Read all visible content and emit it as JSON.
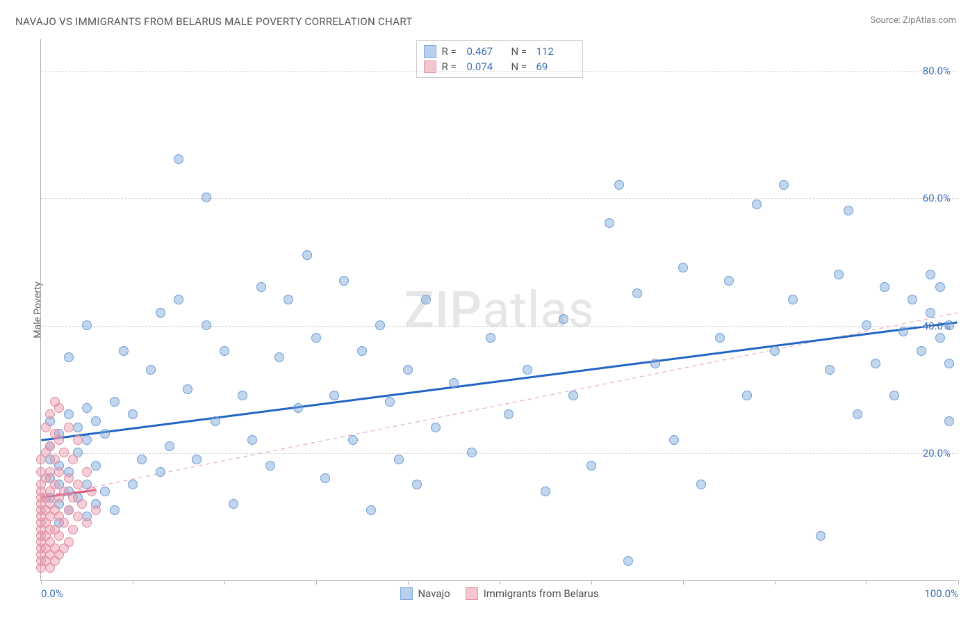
{
  "title": "NAVAJO VS IMMIGRANTS FROM BELARUS MALE POVERTY CORRELATION CHART",
  "source_prefix": "Source: ",
  "source_name": "ZipAtlas.com",
  "y_axis_label": "Male Poverty",
  "watermark_bold": "ZIP",
  "watermark_light": "atlas",
  "chart": {
    "type": "scatter",
    "background_color": "#ffffff",
    "grid_color": "#d8d8d8",
    "axis_color": "#b0b0b0",
    "tick_label_color": "#3b6fb6",
    "label_color": "#606060",
    "x_min": 0,
    "x_max": 100,
    "y_min": 0,
    "y_max": 85,
    "y_ticks": [
      20,
      40,
      60,
      80
    ],
    "y_tick_labels": [
      "20.0%",
      "40.0%",
      "60.0%",
      "80.0%"
    ],
    "x_ticks": [
      0,
      10,
      20,
      30,
      40,
      50,
      60,
      70,
      80,
      90,
      100
    ],
    "x_tick_labels": {
      "0": "0.0%",
      "100": "100.0%"
    },
    "point_radius": 7,
    "series": [
      {
        "name": "Navajo",
        "fill": "rgba(120,165,218,0.45)",
        "stroke": "#6d9cd4",
        "swatch_fill": "#b9d0ec",
        "swatch_border": "#7fa8d8",
        "trend": {
          "x1": 0,
          "y1": 22,
          "x2": 100,
          "y2": 40.5,
          "color": "#1f63c4",
          "width": 3,
          "dash": "none"
        },
        "trend_dashed": {
          "x1": 0,
          "y1": 13,
          "x2": 100,
          "y2": 42,
          "color": "#e9b4bd",
          "width": 1.3,
          "dash": "6 5"
        },
        "R": "0.467",
        "N": "112",
        "points": [
          [
            1,
            13
          ],
          [
            1,
            16
          ],
          [
            1,
            19
          ],
          [
            1,
            21
          ],
          [
            1,
            25
          ],
          [
            2,
            9
          ],
          [
            2,
            12
          ],
          [
            2,
            15
          ],
          [
            2,
            18
          ],
          [
            2,
            23
          ],
          [
            3,
            11
          ],
          [
            3,
            14
          ],
          [
            3,
            17
          ],
          [
            3,
            26
          ],
          [
            3,
            35
          ],
          [
            4,
            13
          ],
          [
            4,
            20
          ],
          [
            4,
            24
          ],
          [
            5,
            10
          ],
          [
            5,
            15
          ],
          [
            5,
            22
          ],
          [
            5,
            27
          ],
          [
            5,
            40
          ],
          [
            6,
            12
          ],
          [
            6,
            18
          ],
          [
            6,
            25
          ],
          [
            7,
            14
          ],
          [
            7,
            23
          ],
          [
            8,
            11
          ],
          [
            8,
            28
          ],
          [
            9,
            36
          ],
          [
            10,
            15
          ],
          [
            10,
            26
          ],
          [
            11,
            19
          ],
          [
            12,
            33
          ],
          [
            13,
            17
          ],
          [
            13,
            42
          ],
          [
            14,
            21
          ],
          [
            15,
            66
          ],
          [
            15,
            44
          ],
          [
            16,
            30
          ],
          [
            17,
            19
          ],
          [
            18,
            40
          ],
          [
            18,
            60
          ],
          [
            19,
            25
          ],
          [
            20,
            36
          ],
          [
            21,
            12
          ],
          [
            22,
            29
          ],
          [
            23,
            22
          ],
          [
            24,
            46
          ],
          [
            25,
            18
          ],
          [
            26,
            35
          ],
          [
            27,
            44
          ],
          [
            28,
            27
          ],
          [
            29,
            51
          ],
          [
            30,
            38
          ],
          [
            31,
            16
          ],
          [
            32,
            29
          ],
          [
            33,
            47
          ],
          [
            34,
            22
          ],
          [
            35,
            36
          ],
          [
            36,
            11
          ],
          [
            37,
            40
          ],
          [
            38,
            28
          ],
          [
            39,
            19
          ],
          [
            40,
            33
          ],
          [
            41,
            15
          ],
          [
            42,
            44
          ],
          [
            43,
            24
          ],
          [
            45,
            31
          ],
          [
            47,
            20
          ],
          [
            49,
            38
          ],
          [
            51,
            26
          ],
          [
            53,
            33
          ],
          [
            55,
            14
          ],
          [
            57,
            41
          ],
          [
            58,
            29
          ],
          [
            60,
            18
          ],
          [
            62,
            56
          ],
          [
            63,
            62
          ],
          [
            64,
            3
          ],
          [
            65,
            45
          ],
          [
            67,
            34
          ],
          [
            69,
            22
          ],
          [
            70,
            49
          ],
          [
            72,
            15
          ],
          [
            74,
            38
          ],
          [
            75,
            47
          ],
          [
            77,
            29
          ],
          [
            78,
            59
          ],
          [
            80,
            36
          ],
          [
            81,
            62
          ],
          [
            82,
            44
          ],
          [
            85,
            7
          ],
          [
            86,
            33
          ],
          [
            87,
            48
          ],
          [
            88,
            58
          ],
          [
            89,
            26
          ],
          [
            90,
            40
          ],
          [
            91,
            34
          ],
          [
            92,
            46
          ],
          [
            93,
            29
          ],
          [
            94,
            39
          ],
          [
            95,
            44
          ],
          [
            96,
            36
          ],
          [
            97,
            48
          ],
          [
            97,
            42
          ],
          [
            98,
            38
          ],
          [
            98,
            46
          ],
          [
            99,
            40
          ],
          [
            99,
            34
          ],
          [
            99,
            25
          ]
        ]
      },
      {
        "name": "Immigrants from Belarus",
        "fill": "rgba(236,150,170,0.45)",
        "stroke": "#e08ba0",
        "swatch_fill": "#f4c6d0",
        "swatch_border": "#e494a8",
        "trend": {
          "x1": 0,
          "y1": 13,
          "x2": 6,
          "y2": 14.2,
          "color": "#d94f6e",
          "width": 3,
          "dash": "none"
        },
        "R": "0.074",
        "N": "69",
        "points": [
          [
            0,
            2
          ],
          [
            0,
            3
          ],
          [
            0,
            4
          ],
          [
            0,
            5
          ],
          [
            0,
            6
          ],
          [
            0,
            7
          ],
          [
            0,
            8
          ],
          [
            0,
            9
          ],
          [
            0,
            10
          ],
          [
            0,
            11
          ],
          [
            0,
            12
          ],
          [
            0,
            13
          ],
          [
            0,
            14
          ],
          [
            0,
            15
          ],
          [
            0,
            17
          ],
          [
            0,
            19
          ],
          [
            0.5,
            3
          ],
          [
            0.5,
            5
          ],
          [
            0.5,
            7
          ],
          [
            0.5,
            9
          ],
          [
            0.5,
            11
          ],
          [
            0.5,
            13
          ],
          [
            0.5,
            16
          ],
          [
            0.5,
            20
          ],
          [
            0.5,
            24
          ],
          [
            1,
            2
          ],
          [
            1,
            4
          ],
          [
            1,
            6
          ],
          [
            1,
            8
          ],
          [
            1,
            10
          ],
          [
            1,
            12
          ],
          [
            1,
            14
          ],
          [
            1,
            17
          ],
          [
            1,
            21
          ],
          [
            1,
            26
          ],
          [
            1.5,
            3
          ],
          [
            1.5,
            5
          ],
          [
            1.5,
            8
          ],
          [
            1.5,
            11
          ],
          [
            1.5,
            15
          ],
          [
            1.5,
            19
          ],
          [
            1.5,
            23
          ],
          [
            1.5,
            28
          ],
          [
            2,
            4
          ],
          [
            2,
            7
          ],
          [
            2,
            10
          ],
          [
            2,
            13
          ],
          [
            2,
            17
          ],
          [
            2,
            22
          ],
          [
            2,
            27
          ],
          [
            2.5,
            5
          ],
          [
            2.5,
            9
          ],
          [
            2.5,
            14
          ],
          [
            2.5,
            20
          ],
          [
            3,
            6
          ],
          [
            3,
            11
          ],
          [
            3,
            16
          ],
          [
            3,
            24
          ],
          [
            3.5,
            8
          ],
          [
            3.5,
            13
          ],
          [
            3.5,
            19
          ],
          [
            4,
            10
          ],
          [
            4,
            15
          ],
          [
            4,
            22
          ],
          [
            4.5,
            12
          ],
          [
            5,
            9
          ],
          [
            5,
            17
          ],
          [
            5.5,
            14
          ],
          [
            6,
            11
          ]
        ]
      }
    ]
  },
  "legend_top": [
    {
      "swatch_fill": "#b9d0ec",
      "swatch_border": "#7fa8d8",
      "R": "0.467",
      "N": "112"
    },
    {
      "swatch_fill": "#f4c6d0",
      "swatch_border": "#e494a8",
      "R": "0.074",
      "N": "69"
    }
  ],
  "legend_bottom": [
    {
      "swatch_fill": "#b9d0ec",
      "swatch_border": "#7fa8d8",
      "label": "Navajo"
    },
    {
      "swatch_fill": "#f4c6d0",
      "swatch_border": "#e494a8",
      "label": "Immigrants from Belarus"
    }
  ],
  "labels": {
    "R": "R  =",
    "N": "N  ="
  }
}
